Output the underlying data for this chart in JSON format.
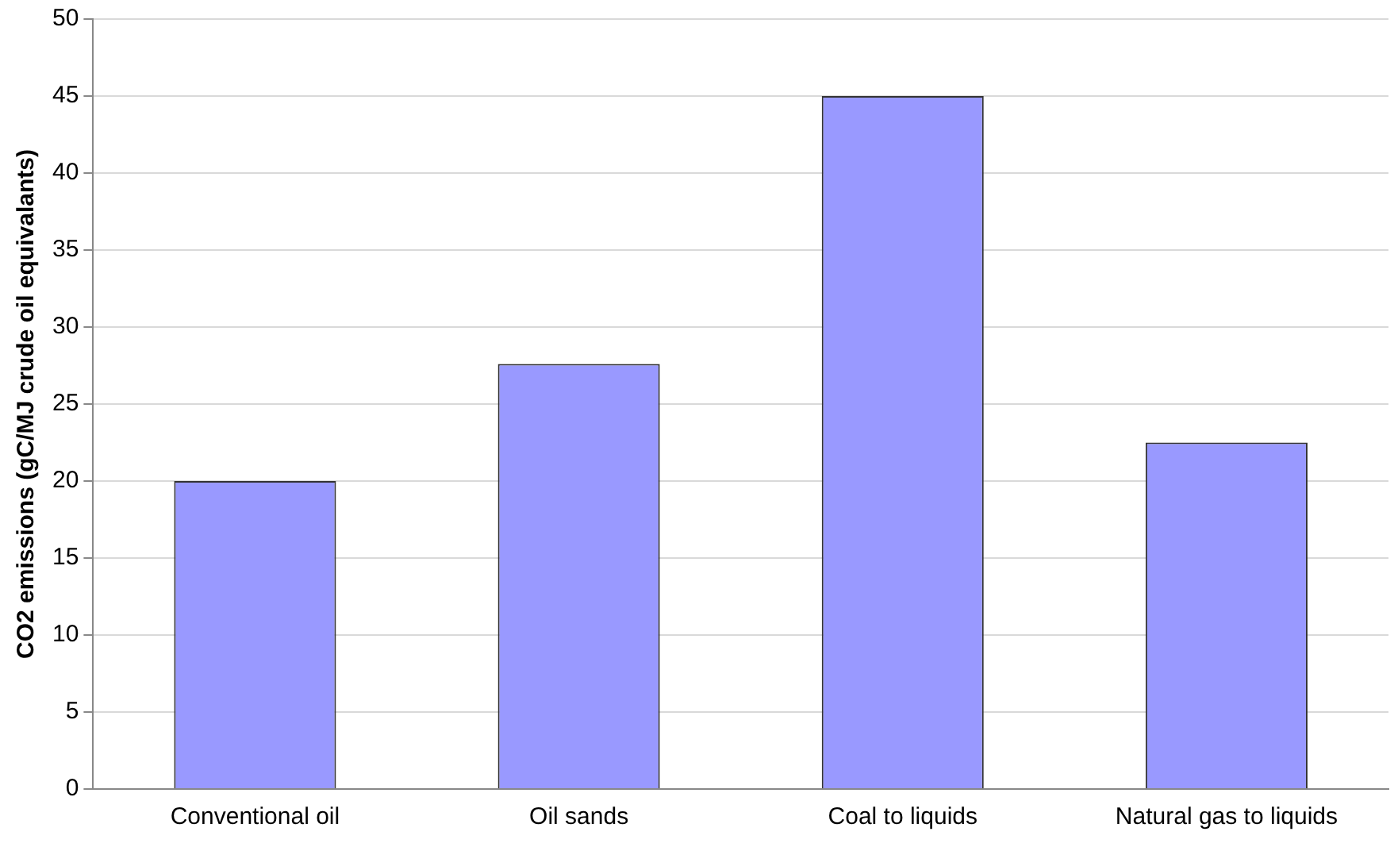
{
  "chart_data": {
    "type": "bar",
    "ylabel": "CO2 emissions (gC/MJ crude oil equivalants)",
    "categories": [
      "Conventional oil",
      "Oil sands",
      "Coal to liquids",
      "Natural gas to liquids"
    ],
    "values": [
      20,
      27.6,
      45,
      22.5
    ],
    "color": "#9999ff",
    "ylim": [
      0,
      50
    ],
    "yticks": [
      0,
      5,
      10,
      15,
      20,
      25,
      30,
      35,
      40,
      45,
      50
    ],
    "grid": "y",
    "legend": false
  }
}
